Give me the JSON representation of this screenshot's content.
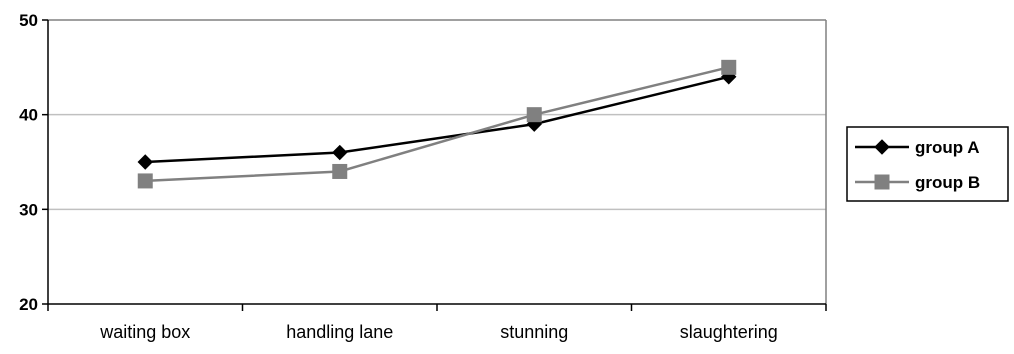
{
  "chart_data": {
    "type": "line",
    "title": "",
    "xlabel": "",
    "ylabel": "",
    "categories": [
      "waiting box",
      "handling lane",
      "stunning",
      "slaughtering"
    ],
    "ylim": [
      20,
      50
    ],
    "yticks": [
      20,
      30,
      40,
      50
    ],
    "grid": true,
    "legend_position": "right",
    "series": [
      {
        "name": "group A",
        "values": [
          35,
          36,
          39,
          44
        ],
        "color": "#000000",
        "marker": "diamond"
      },
      {
        "name": "group B",
        "values": [
          33,
          34,
          40,
          45
        ],
        "color": "#808080",
        "marker": "square"
      }
    ],
    "colors": {
      "gridline": "#c0c0c0",
      "axis": "#000000",
      "plot_border": "#808080",
      "legend_border": "#000000"
    }
  }
}
